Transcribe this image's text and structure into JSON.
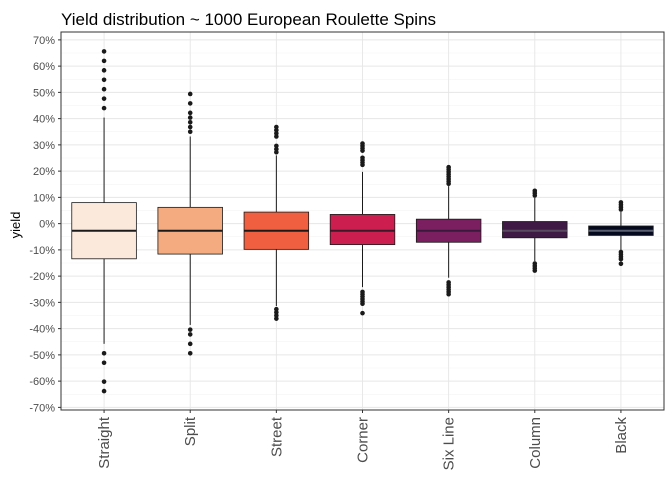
{
  "chart_data": {
    "type": "boxplot",
    "title": "Yield distribution ~ 1000 European Roulette Spins",
    "xlabel": "",
    "ylabel": "yield",
    "ylim": [
      -0.71,
      0.73
    ],
    "y_ticks": [
      -0.7,
      -0.6,
      -0.5,
      -0.4,
      -0.3,
      -0.2,
      -0.1,
      0,
      0.1,
      0.2,
      0.3,
      0.4,
      0.5,
      0.6,
      0.7
    ],
    "y_tick_labels": [
      "-70%",
      "-60%",
      "-50%",
      "-40%",
      "-30%",
      "-20%",
      "-10%",
      "0%",
      "10%",
      "20%",
      "30%",
      "40%",
      "50%",
      "60%",
      "70%"
    ],
    "grid": true,
    "legend": "none",
    "categories": [
      "Straight",
      "Split",
      "Street",
      "Corner",
      "Six Line",
      "Column",
      "Black"
    ],
    "boxes": [
      {
        "category": "Straight",
        "color": "#fbe9dc",
        "median_color": "#1a1a1a",
        "q1": -0.134,
        "median": -0.027,
        "q3": 0.08,
        "whisker_low": -0.458,
        "whisker_high": 0.404,
        "outliers": [
          0.656,
          0.62,
          0.584,
          0.548,
          0.512,
          0.476,
          0.44,
          -0.494,
          -0.53,
          -0.602,
          -0.638
        ]
      },
      {
        "category": "Split",
        "color": "#f5ab80",
        "median_color": "#1a1a1a",
        "q1": -0.116,
        "median": -0.027,
        "q3": 0.062,
        "whisker_low": -0.386,
        "whisker_high": 0.332,
        "outliers": [
          0.494,
          0.458,
          0.422,
          0.404,
          0.386,
          0.368,
          0.35,
          -0.404,
          -0.422,
          -0.458,
          -0.494
        ]
      },
      {
        "category": "Street",
        "color": "#f06040",
        "median_color": "#1a1a1a",
        "q1": -0.098,
        "median": -0.027,
        "q3": 0.044,
        "whisker_low": -0.314,
        "whisker_high": 0.26,
        "outliers": [
          0.368,
          0.356,
          0.344,
          0.332,
          0.296,
          0.284,
          0.272,
          -0.326,
          -0.338,
          -0.35,
          -0.362
        ]
      },
      {
        "category": "Corner",
        "color": "#cc1f50",
        "median_color": "#3a1a28",
        "q1": -0.08,
        "median": -0.027,
        "q3": 0.035,
        "whisker_low": -0.242,
        "whisker_high": 0.197,
        "outliers": [
          0.305,
          0.296,
          0.287,
          0.278,
          0.251,
          0.242,
          0.233,
          0.224,
          -0.26,
          -0.269,
          -0.278,
          -0.287,
          -0.296,
          -0.305,
          -0.341
        ]
      },
      {
        "category": "Six Line",
        "color": "#7c1f61",
        "median_color": "#3a1a3a",
        "q1": -0.071,
        "median": -0.027,
        "q3": 0.017,
        "whisker_low": -0.206,
        "whisker_high": 0.143,
        "outliers": [
          0.215,
          0.206,
          0.197,
          0.188,
          0.179,
          0.17,
          0.161,
          0.152,
          -0.224,
          -0.233,
          -0.242,
          -0.251,
          -0.26,
          -0.269
        ]
      },
      {
        "category": "Column",
        "color": "#3e1a45",
        "median_color": "#5a4a60",
        "q1": -0.054,
        "median": -0.027,
        "q3": 0.008,
        "whisker_low": -0.143,
        "whisker_high": 0.098,
        "outliers": [
          0.125,
          0.116,
          0.107,
          -0.152,
          -0.161,
          -0.17,
          -0.179
        ]
      },
      {
        "category": "Black",
        "color": "#05091f",
        "median_color": "#5a6070",
        "q1": -0.045,
        "median": -0.027,
        "q3": -0.009,
        "whisker_low": -0.099,
        "whisker_high": 0.045,
        "outliers": [
          0.081,
          0.072,
          0.063,
          0.054,
          -0.108,
          -0.117,
          -0.126,
          -0.135,
          -0.153
        ]
      }
    ]
  }
}
